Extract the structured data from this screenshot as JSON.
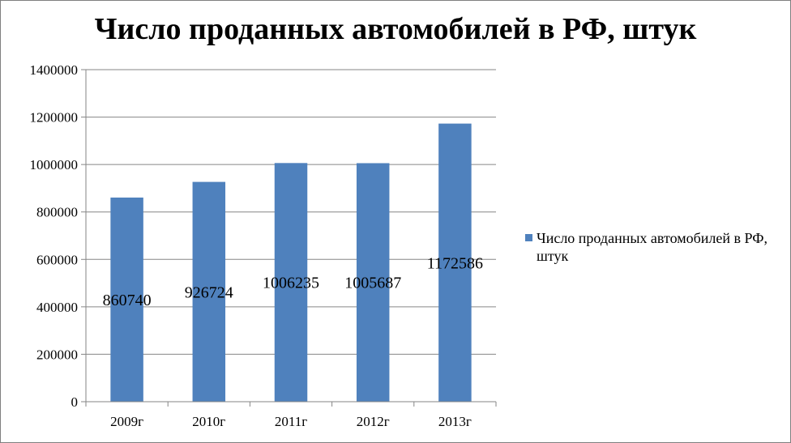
{
  "chart_data": {
    "type": "bar",
    "title": "Число проданных автомобилей в РФ, штук",
    "categories": [
      "2009г",
      "2010г",
      "2011г",
      "2012г",
      "2013г"
    ],
    "series": [
      {
        "name": "Число проданных автомобилей в РФ, штук",
        "values": [
          860740,
          926724,
          1006235,
          1005687,
          1172586
        ],
        "data_labels": [
          "860740",
          "926724",
          "1006235",
          "1005687",
          "1172586"
        ]
      }
    ],
    "ylim": [
      0,
      1400000
    ],
    "yticks": [
      "0",
      "200000",
      "400000",
      "600000",
      "800000",
      "1000000",
      "1200000",
      "1400000"
    ],
    "ytick_values": [
      0,
      200000,
      400000,
      600000,
      800000,
      1000000,
      1200000,
      1400000
    ],
    "grid": true,
    "legend_position": "right",
    "colors": {
      "bar": "#4f81bd",
      "grid": "#868686",
      "axis": "#868686"
    }
  }
}
